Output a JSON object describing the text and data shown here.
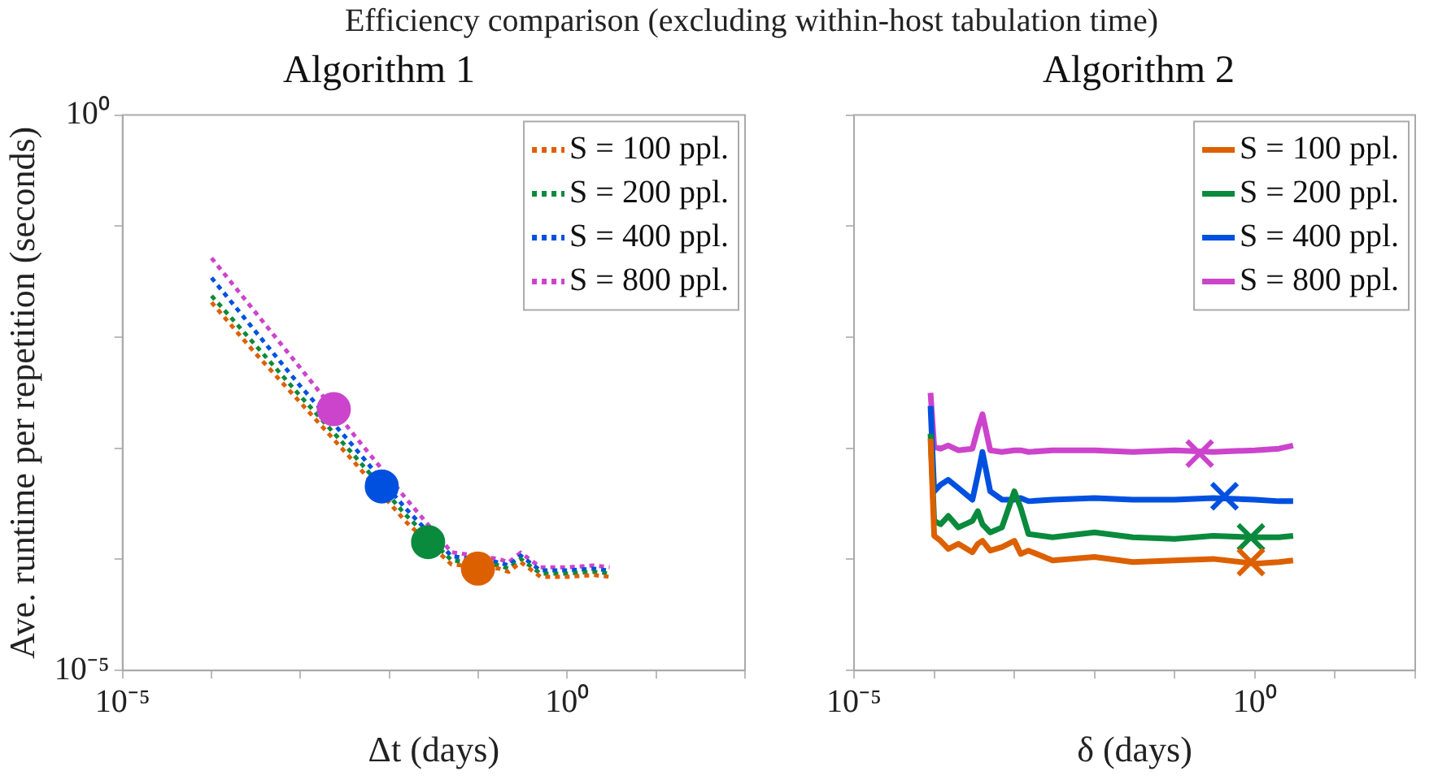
{
  "chart_data": [
    {
      "type": "line",
      "title": "Algorithm 1",
      "annotations": [
        "Efficiency comparison (excluding within-host tabulation time)"
      ],
      "xlabel": "Δt (days)",
      "ylabel": "Ave. runtime per repetition (seconds)",
      "log": "xy",
      "grid": false,
      "legend": "top right",
      "xlim": [
        1e-05,
        100
      ],
      "xticks": [
        {
          "value": 1e-05,
          "label": "10⁻⁵"
        },
        {
          "value": 0.0001,
          "label": null
        },
        {
          "value": 0.001,
          "label": null
        },
        {
          "value": 0.01,
          "label": null
        },
        {
          "value": 0.1,
          "label": null
        },
        {
          "value": 1,
          "label": "10⁰"
        },
        {
          "value": 10,
          "label": null
        },
        {
          "value": 100,
          "label": null
        }
      ],
      "ylim": [
        1e-05,
        1
      ],
      "yticks": [
        {
          "value": 1e-05,
          "label": "10⁻⁵"
        },
        {
          "value": 0.0001,
          "label": null
        },
        {
          "value": 0.001,
          "label": null
        },
        {
          "value": 0.01,
          "label": null
        },
        {
          "value": 0.1,
          "label": null
        },
        {
          "value": 1,
          "label": "10⁰"
        }
      ],
      "series": [
        {
          "name": "S = 100 ppl.",
          "type": "line",
          "line_style": "dotted",
          "color": "#dd6000",
          "x": [
            0.0001,
            0.0003,
            0.001,
            0.004,
            0.015,
            0.05,
            0.17,
            0.22,
            0.3,
            0.5,
            1,
            2,
            3
          ],
          "values": [
            0.0206,
            0.00741,
            0.00258,
            0.000756,
            0.000222,
            8.99e-05,
            8.26e-05,
            7.72e-05,
            9.46e-05,
            6.97e-05,
            6.97e-05,
            7.22e-05,
            6.97e-05
          ]
        },
        {
          "name": "S = 200 ppl.",
          "type": "line",
          "line_style": "dotted",
          "color": "#0a8a3c",
          "x": [
            0.0001,
            0.0003,
            0.001,
            0.004,
            0.015,
            0.05,
            0.17,
            0.22,
            0.3,
            0.5,
            1,
            2,
            3
          ],
          "values": [
            0.0236,
            0.00879,
            0.00295,
            0.000867,
            0.000255,
            9.8e-05,
            8.84e-05,
            8.26e-05,
            0.000101,
            7.46e-05,
            7.46e-05,
            7.73e-05,
            7.46e-05
          ]
        },
        {
          "name": "S = 400 ppl.",
          "type": "line",
          "line_style": "dotted",
          "color": "#0050e0",
          "x": [
            0.0001,
            0.0003,
            0.001,
            0.004,
            0.015,
            0.05,
            0.17,
            0.22,
            0.3,
            0.5,
            1,
            2,
            3
          ],
          "values": [
            0.0343,
            0.0117,
            0.00362,
            0.00103,
            0.000291,
            0.000107,
            9.42e-05,
            8.8e-05,
            0.000108,
            7.95e-05,
            7.95e-05,
            8.23e-05,
            7.95e-05
          ]
        },
        {
          "name": "S = 800 ppl.",
          "type": "line",
          "line_style": "dotted",
          "color": "#cc44cc",
          "x": [
            0.0001,
            0.0003,
            0.001,
            0.004,
            0.015,
            0.05,
            0.17,
            0.22,
            0.3,
            0.5,
            1,
            2,
            3
          ],
          "values": [
            0.0516,
            0.0174,
            0.00527,
            0.00132,
            0.000361,
            0.000116,
            0.000101,
            9.42e-05,
            0.000115,
            8.5e-05,
            8.5e-05,
            8.81e-05,
            8.5e-05
          ]
        },
        {
          "type": "scatter",
          "marker": "circle",
          "color": "#dd6000",
          "x": [
            0.0991
          ],
          "values": [
            8.26e-05
          ]
        },
        {
          "type": "scatter",
          "marker": "circle",
          "color": "#0a8a3c",
          "x": [
            0.0273
          ],
          "values": [
            0.000143
          ]
        },
        {
          "type": "scatter",
          "marker": "circle",
          "color": "#0050e0",
          "x": [
            0.00822
          ],
          "values": [
            0.000454
          ]
        },
        {
          "type": "scatter",
          "marker": "circle",
          "color": "#cc44cc",
          "x": [
            0.00237
          ],
          "values": [
            0.00225
          ]
        }
      ]
    },
    {
      "type": "line",
      "title": "Algorithm 2",
      "xlabel": "δ (days)",
      "log": "xy",
      "grid": false,
      "legend": "top right",
      "tick_labels": "x",
      "xlim": [
        1e-05,
        100
      ],
      "xticks": [
        {
          "value": 1e-05,
          "label": "10⁻⁵"
        },
        {
          "value": 0.0001,
          "label": null
        },
        {
          "value": 0.001,
          "label": null
        },
        {
          "value": 0.01,
          "label": null
        },
        {
          "value": 0.1,
          "label": null
        },
        {
          "value": 1,
          "label": "10⁰"
        },
        {
          "value": 10,
          "label": null
        },
        {
          "value": 100,
          "label": null
        }
      ],
      "ylim": [
        1e-05,
        1
      ],
      "yticks": [
        {
          "value": 1e-05,
          "label": null
        },
        {
          "value": 0.0001,
          "label": null
        },
        {
          "value": 0.001,
          "label": null
        },
        {
          "value": 0.01,
          "label": null
        },
        {
          "value": 0.1,
          "label": null
        },
        {
          "value": 1,
          "label": null
        }
      ],
      "series": [
        {
          "name": "S = 100 ppl.",
          "type": "line",
          "line_style": "solid",
          "color": "#dd6000",
          "x": [
            9e-05,
            0.0001,
            0.00012,
            0.00015,
            0.0002,
            0.0003,
            0.00035,
            0.0004,
            0.0005,
            0.0007,
            0.001,
            0.0012,
            0.0015,
            0.003,
            0.01,
            0.03,
            0.1,
            0.3,
            1,
            2,
            3
          ],
          "values": [
            0.00122,
            0.000163,
            0.000147,
            0.000124,
            0.000138,
            0.000116,
            0.000138,
            0.000147,
            0.00012,
            0.000129,
            0.000147,
            0.000112,
            0.00012,
            9.8e-05,
            0.000105,
            9.46e-05,
            9.8e-05,
            0.000101,
            9.16e-05,
            9.46e-05,
            9.8e-05
          ]
        },
        {
          "name": "S = 200 ppl.",
          "type": "line",
          "line_style": "solid",
          "color": "#0a8a3c",
          "x": [
            9e-05,
            0.0001,
            0.00012,
            0.00015,
            0.0002,
            0.0003,
            0.00035,
            0.0004,
            0.0005,
            0.0007,
            0.001,
            0.0012,
            0.0015,
            0.003,
            0.01,
            0.03,
            0.1,
            0.3,
            1,
            2,
            3
          ],
          "values": [
            0.00135,
            0.000222,
            0.000207,
            0.000246,
            0.000194,
            0.000222,
            0.000272,
            0.000207,
            0.000175,
            0.000194,
            0.00041,
            0.000291,
            0.000169,
            0.000158,
            0.000175,
            0.000158,
            0.000153,
            0.000163,
            0.000158,
            0.000158,
            0.000163
          ]
        },
        {
          "name": "S = 400 ppl.",
          "type": "line",
          "line_style": "solid",
          "color": "#0050e0",
          "x": [
            9e-05,
            0.0001,
            0.00012,
            0.00015,
            0.0002,
            0.0003,
            0.00035,
            0.0004,
            0.0005,
            0.0007,
            0.001,
            0.0012,
            0.0015,
            0.003,
            0.01,
            0.03,
            0.1,
            0.3,
            1,
            2,
            3
          ],
          "values": [
            0.00241,
            0.00041,
            0.00047,
            0.00052,
            0.000439,
            0.000345,
            0.000575,
            0.000927,
            0.00041,
            0.000345,
            0.000345,
            0.000357,
            0.000334,
            0.000345,
            0.000357,
            0.000345,
            0.000345,
            0.000357,
            0.000345,
            0.000334,
            0.000334
          ]
        },
        {
          "name": "S = 800 ppl.",
          "type": "line",
          "line_style": "solid",
          "color": "#cc44cc",
          "x": [
            9e-05,
            0.0001,
            0.00012,
            0.00015,
            0.0002,
            0.0003,
            0.00035,
            0.0004,
            0.0005,
            0.0007,
            0.001,
            0.0012,
            0.0015,
            0.003,
            0.01,
            0.03,
            0.1,
            0.3,
            1,
            2,
            3
          ],
          "values": [
            0.00316,
            0.00103,
            0.000993,
            0.00106,
            0.00096,
            0.000993,
            0.0015,
            0.00203,
            0.00096,
            0.000927,
            0.00096,
            0.00096,
            0.000927,
            0.00096,
            0.00096,
            0.000927,
            0.00096,
            0.000927,
            0.00096,
            0.000993,
            0.00106
          ]
        },
        {
          "type": "scatter",
          "marker": "cross",
          "color": "#dd6000",
          "x": [
            0.893
          ],
          "values": [
            9.46e-05
          ]
        },
        {
          "type": "scatter",
          "marker": "cross",
          "color": "#0a8a3c",
          "x": [
            0.893
          ],
          "values": [
            0.000158
          ]
        },
        {
          "type": "scatter",
          "marker": "cross",
          "color": "#0050e0",
          "x": [
            0.418
          ],
          "values": [
            0.00037
          ]
        },
        {
          "type": "scatter",
          "marker": "cross",
          "color": "#cc44cc",
          "x": [
            0.205
          ],
          "values": [
            0.000897
          ]
        }
      ]
    }
  ]
}
